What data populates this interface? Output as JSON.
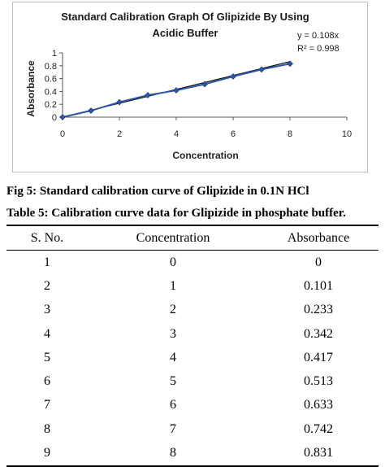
{
  "chart_data": {
    "type": "line",
    "title": [
      "Standard Calibration Graph Of Glipizide  By Using",
      "Acidic Buffer"
    ],
    "xlabel": "Concentration",
    "ylabel": "Absorbance",
    "xlim": [
      0,
      10
    ],
    "ylim": [
      0,
      1
    ],
    "x_ticks": [
      "0",
      "2",
      "4",
      "6",
      "8",
      "10"
    ],
    "y_ticks": [
      "0",
      "0.2",
      "0.4",
      "0.6",
      "0.8",
      "1"
    ],
    "grid": false,
    "series_color": "#2f55a4",
    "trendline": {
      "equation": "y = 0.108x",
      "r2": "R² = 0.998",
      "slope": 0.108
    },
    "series": [
      {
        "x": [
          0,
          1,
          2,
          3,
          4,
          5,
          6,
          7,
          8
        ],
        "values": [
          0,
          0.101,
          0.233,
          0.342,
          0.417,
          0.513,
          0.633,
          0.742,
          0.831
        ]
      }
    ]
  },
  "figure_caption": "Fig 5: Standard calibration curve of Glipizide in 0.1N HCl",
  "table_caption": "Table 5: Calibration curve data for Glipizide in phosphate buffer.",
  "table": {
    "headers": [
      "S. No.",
      "Concentration",
      "Absorbance"
    ],
    "rows": [
      [
        "1",
        "0",
        "0"
      ],
      [
        "2",
        "1",
        "0.101"
      ],
      [
        "3",
        "2",
        "0.233"
      ],
      [
        "4",
        "3",
        "0.342"
      ],
      [
        "5",
        "4",
        "0.417"
      ],
      [
        "6",
        "5",
        "0.513"
      ],
      [
        "7",
        "6",
        "0.633"
      ],
      [
        "8",
        "7",
        "0.742"
      ],
      [
        "9",
        "8",
        "0.831"
      ]
    ]
  }
}
